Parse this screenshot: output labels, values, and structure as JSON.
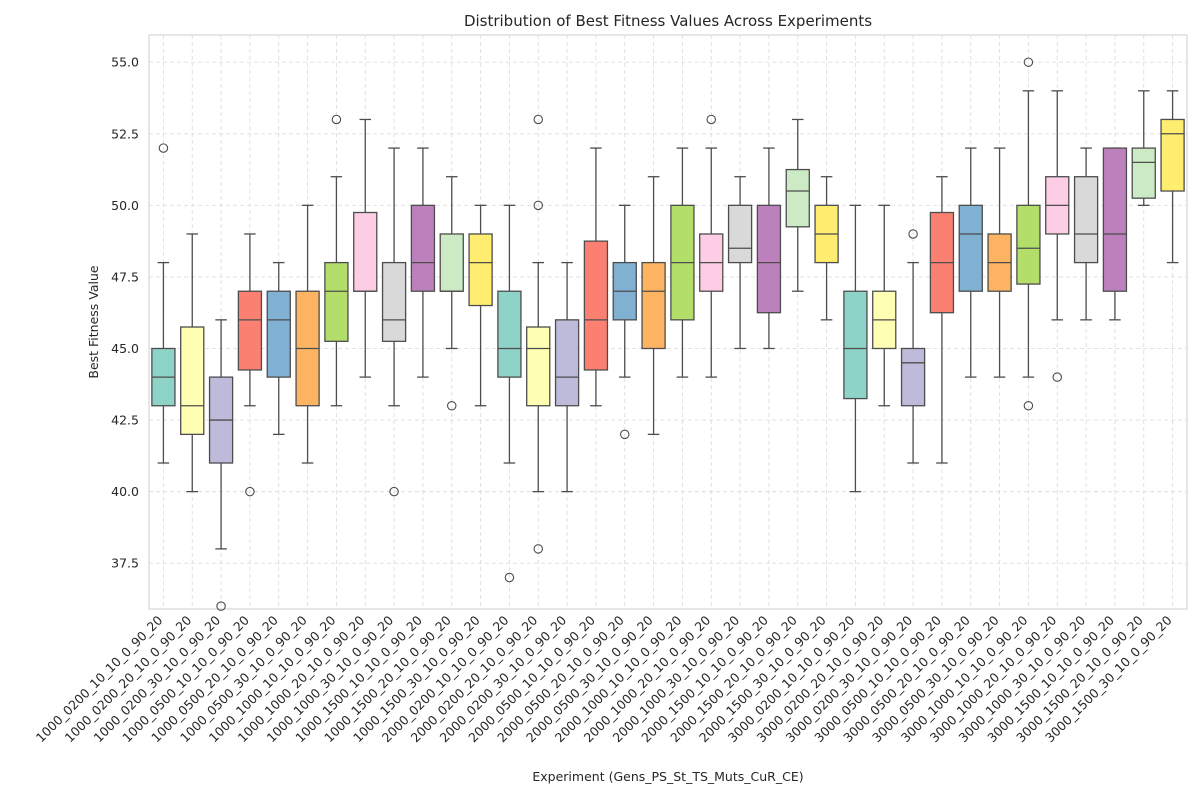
{
  "chart_data": {
    "type": "box",
    "title": "Distribution of Best Fitness Values Across Experiments",
    "xlabel": "Experiment (Gens_PS_St_TS_Muts_CuR_CE)",
    "ylabel": "Best Fitness Value",
    "ylim": [
      35.9,
      55.95
    ],
    "yticks": [
      37.5,
      40.0,
      42.5,
      45.0,
      47.5,
      50.0,
      52.5,
      55.0
    ],
    "ytick_labels": [
      "37.5",
      "40.0",
      "42.5",
      "45.0",
      "47.5",
      "50.0",
      "52.5",
      "55.0"
    ],
    "grid": true,
    "palette": [
      "#8dd3c7",
      "#ffffb3",
      "#bebada",
      "#fb8072",
      "#80b1d3",
      "#fdb462",
      "#b3de69",
      "#fccde5",
      "#d9d9d9",
      "#bc80bd",
      "#ccebc5",
      "#ffed6f"
    ],
    "categories": [
      "1000_0200_10_10_0_90_20",
      "1000_0200_20_10_0_90_20",
      "1000_0200_30_10_0_90_20",
      "1000_0500_10_10_0_90_20",
      "1000_0500_20_10_0_90_20",
      "1000_0500_30_10_0_90_20",
      "1000_1000_10_10_0_90_20",
      "1000_1000_20_10_0_90_20",
      "1000_1000_30_10_0_90_20",
      "1000_1500_10_10_0_90_20",
      "1000_1500_20_10_0_90_20",
      "1000_1500_30_10_0_90_20",
      "2000_0200_10_10_0_90_20",
      "2000_0200_20_10_0_90_20",
      "2000_0200_30_10_0_90_20",
      "2000_0500_10_10_0_90_20",
      "2000_0500_20_10_0_90_20",
      "2000_0500_30_10_0_90_20",
      "2000_1000_10_10_0_90_20",
      "2000_1000_20_10_0_90_20",
      "2000_1000_30_10_0_90_20",
      "2000_1500_10_10_0_90_20",
      "2000_1500_20_10_0_90_20",
      "2000_1500_30_10_0_90_20",
      "3000_0200_10_10_0_90_20",
      "3000_0200_20_10_0_90_20",
      "3000_0200_30_10_0_90_20",
      "3000_0500_10_10_0_90_20",
      "3000_0500_20_10_0_90_20",
      "3000_0500_30_10_0_90_20",
      "3000_1000_10_10_0_90_20",
      "3000_1000_20_10_0_90_20",
      "3000_1000_30_10_0_90_20",
      "3000_1500_10_10_0_90_20",
      "3000_1500_20_10_0_90_20",
      "3000_1500_30_10_0_90_20"
    ],
    "boxes": [
      {
        "whislo": 41,
        "q1": 43,
        "med": 44,
        "q3": 45,
        "whishi": 48,
        "fliers": [
          52
        ]
      },
      {
        "whislo": 40,
        "q1": 42,
        "med": 43,
        "q3": 45.75,
        "whishi": 49,
        "fliers": []
      },
      {
        "whislo": 38,
        "q1": 41,
        "med": 42.5,
        "q3": 44,
        "whishi": 46,
        "fliers": [
          36
        ]
      },
      {
        "whislo": 43,
        "q1": 44.25,
        "med": 46,
        "q3": 47,
        "whishi": 49,
        "fliers": [
          40
        ]
      },
      {
        "whislo": 42,
        "q1": 44,
        "med": 46,
        "q3": 47,
        "whishi": 48,
        "fliers": []
      },
      {
        "whislo": 41,
        "q1": 43,
        "med": 45,
        "q3": 47,
        "whishi": 50,
        "fliers": []
      },
      {
        "whislo": 43,
        "q1": 45.25,
        "med": 47,
        "q3": 48,
        "whishi": 51,
        "fliers": [
          53
        ]
      },
      {
        "whislo": 44,
        "q1": 47,
        "med": 47,
        "q3": 49.75,
        "whishi": 53,
        "fliers": []
      },
      {
        "whislo": 43,
        "q1": 45.25,
        "med": 46,
        "q3": 48,
        "whishi": 52,
        "fliers": [
          40
        ]
      },
      {
        "whislo": 44,
        "q1": 47,
        "med": 48,
        "q3": 50,
        "whishi": 52,
        "fliers": []
      },
      {
        "whislo": 45,
        "q1": 47,
        "med": 47,
        "q3": 49,
        "whishi": 51,
        "fliers": [
          43
        ]
      },
      {
        "whislo": 43,
        "q1": 46.5,
        "med": 48,
        "q3": 49,
        "whishi": 50,
        "fliers": []
      },
      {
        "whislo": 41,
        "q1": 44,
        "med": 45,
        "q3": 47,
        "whishi": 50,
        "fliers": [
          37
        ]
      },
      {
        "whislo": 40,
        "q1": 43,
        "med": 45,
        "q3": 45.75,
        "whishi": 48,
        "fliers": [
          53,
          50,
          38
        ]
      },
      {
        "whislo": 40,
        "q1": 43,
        "med": 44,
        "q3": 46,
        "whishi": 48,
        "fliers": []
      },
      {
        "whislo": 43,
        "q1": 44.25,
        "med": 46,
        "q3": 48.75,
        "whishi": 52,
        "fliers": []
      },
      {
        "whislo": 44,
        "q1": 46,
        "med": 47,
        "q3": 48,
        "whishi": 50,
        "fliers": [
          42
        ]
      },
      {
        "whislo": 42,
        "q1": 45,
        "med": 47,
        "q3": 48,
        "whishi": 51,
        "fliers": []
      },
      {
        "whislo": 44,
        "q1": 46,
        "med": 48,
        "q3": 50,
        "whishi": 52,
        "fliers": []
      },
      {
        "whislo": 44,
        "q1": 47,
        "med": 48,
        "q3": 49,
        "whishi": 52,
        "fliers": [
          53
        ]
      },
      {
        "whislo": 45,
        "q1": 48,
        "med": 48.5,
        "q3": 50,
        "whishi": 51,
        "fliers": []
      },
      {
        "whislo": 45,
        "q1": 46.25,
        "med": 48,
        "q3": 50,
        "whishi": 52,
        "fliers": []
      },
      {
        "whislo": 47,
        "q1": 49.25,
        "med": 50.5,
        "q3": 51.25,
        "whishi": 53,
        "fliers": []
      },
      {
        "whislo": 46,
        "q1": 48,
        "med": 49,
        "q3": 50,
        "whishi": 51,
        "fliers": []
      },
      {
        "whislo": 40,
        "q1": 43.25,
        "med": 45,
        "q3": 47,
        "whishi": 50,
        "fliers": []
      },
      {
        "whislo": 43,
        "q1": 45,
        "med": 46,
        "q3": 47,
        "whishi": 50,
        "fliers": []
      },
      {
        "whislo": 41,
        "q1": 43,
        "med": 44.5,
        "q3": 45,
        "whishi": 48,
        "fliers": [
          49
        ]
      },
      {
        "whislo": 41,
        "q1": 46.25,
        "med": 48,
        "q3": 49.75,
        "whishi": 51,
        "fliers": []
      },
      {
        "whislo": 44,
        "q1": 47,
        "med": 49,
        "q3": 50,
        "whishi": 52,
        "fliers": []
      },
      {
        "whislo": 44,
        "q1": 47,
        "med": 48,
        "q3": 49,
        "whishi": 52,
        "fliers": []
      },
      {
        "whislo": 44,
        "q1": 47.25,
        "med": 48.5,
        "q3": 50,
        "whishi": 54,
        "fliers": [
          55,
          43
        ]
      },
      {
        "whislo": 46,
        "q1": 49,
        "med": 50,
        "q3": 51,
        "whishi": 54,
        "fliers": [
          44
        ]
      },
      {
        "whislo": 46,
        "q1": 48,
        "med": 49,
        "q3": 51,
        "whishi": 52,
        "fliers": []
      },
      {
        "whislo": 46,
        "q1": 47,
        "med": 49,
        "q3": 52,
        "whishi": 52,
        "fliers": []
      },
      {
        "whislo": 50,
        "q1": 50.25,
        "med": 51.5,
        "q3": 52,
        "whishi": 54,
        "fliers": []
      },
      {
        "whislo": 48,
        "q1": 50.5,
        "med": 52.5,
        "q3": 53,
        "whishi": 54,
        "fliers": []
      }
    ]
  }
}
